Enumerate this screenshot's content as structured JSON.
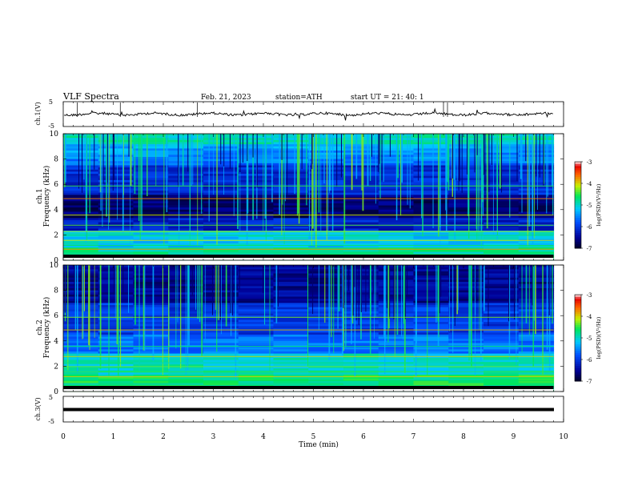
{
  "header": {
    "title": "VLF  Spectra",
    "date": "Feb. 21, 2023",
    "station": "station=ATH",
    "start": "start  UT  =   21: 40: 1"
  },
  "chart_data": [
    {
      "type": "line",
      "ylabel": "ch.1(V)",
      "ylim": [
        -5,
        5
      ],
      "ytick_labels": [
        "5",
        "-5"
      ],
      "xlim": [
        0,
        10
      ],
      "series": [
        {
          "values_description_unit": "V",
          "mean": 0,
          "amplitude": 0.8
        }
      ]
    },
    {
      "type": "heatmap",
      "ylabel": "ch.1\nFrequency (kHz)",
      "ylabel_lines": [
        "ch.1",
        "Frequency (kHz)"
      ],
      "xlim": [
        0,
        9.8
      ],
      "ylim": [
        0,
        10
      ],
      "ytick_labels": [
        "0",
        "2",
        "4",
        "6",
        "8",
        "10"
      ],
      "colorbar": {
        "label": "log(PSD)(V²/Hz)",
        "range": [
          -7,
          -3
        ],
        "ticks": [
          "-3",
          "-4",
          "-5",
          "-6",
          "-7"
        ]
      }
    },
    {
      "type": "heatmap",
      "ylabel": "ch.2\nFrequency (kHz)",
      "ylabel_lines": [
        "ch.2",
        "Frequency (kHz)"
      ],
      "xlim": [
        0,
        9.8
      ],
      "ylim": [
        0,
        10
      ],
      "ytick_labels": [
        "0",
        "2",
        "4",
        "6",
        "8",
        "10"
      ],
      "colorbar": {
        "label": "log(PSD)(V²/Hz)",
        "range": [
          -7,
          -3
        ],
        "ticks": [
          "-3",
          "-4",
          "-5",
          "-6",
          "-7"
        ]
      }
    },
    {
      "type": "line",
      "ylabel": "ch.3(V)",
      "ylim": [
        -5,
        5
      ],
      "ytick_labels": [
        "5",
        "-5"
      ],
      "xlim": [
        0,
        9.8
      ],
      "series": [
        {
          "constant": -1.5
        }
      ]
    }
  ],
  "xaxis": {
    "label": "Time  (min)",
    "range": [
      0,
      10
    ],
    "tick_labels": [
      "0",
      "1",
      "2",
      "3",
      "4",
      "5",
      "6",
      "7",
      "8",
      "9",
      "10"
    ]
  }
}
